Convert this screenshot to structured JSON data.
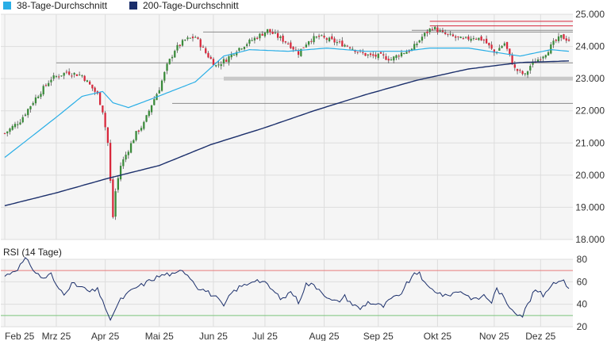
{
  "legend": {
    "items": [
      {
        "label": "38-Tage-Durchschnitt",
        "color": "#29aee6"
      },
      {
        "label": "200-Tage-Durchschnitt",
        "color": "#1b2f6b"
      }
    ]
  },
  "rsi_title": "RSI (14 Tage)",
  "colors": {
    "up": "#3a8a3a",
    "down": "#d8283c",
    "wick": "#555555",
    "sma38": "#29aee6",
    "sma200": "#1b2f6b",
    "rsi": "#1b2f6b",
    "grid": "#dddddd",
    "plot_bg": "#f5f5f5",
    "ref_line": "#d8283c",
    "support": "#c8c8c8",
    "rsi_upper": "#e67b7b",
    "rsi_lower": "#7bc47b"
  },
  "chart_data": [
    {
      "type": "candlestick",
      "ylim": [
        18000,
        25000
      ],
      "yticks": [
        18000,
        19000,
        20000,
        21000,
        22000,
        23000,
        24000,
        25000
      ],
      "ytick_labels": [
        "18.000",
        "19.000",
        "20.000",
        "21.000",
        "22.000",
        "23.000",
        "24.000",
        "25.000"
      ],
      "x_labels": [
        "Feb 25",
        "Mrz 25",
        "Apr 25",
        "Mai 25",
        "Jun 25",
        "Jul 25",
        "Aug 25",
        "Sep 25",
        "Okt 25",
        "Nov 25",
        "Dez 25"
      ],
      "x_range": [
        0,
        219
      ],
      "x_label_positions": [
        0,
        20,
        39,
        60,
        81,
        101,
        124,
        145,
        168,
        190,
        208
      ],
      "grid": true,
      "legend_position": "top-left",
      "sma38_anchors": [
        [
          0,
          20550
        ],
        [
          20,
          21800
        ],
        [
          30,
          22450
        ],
        [
          38,
          22600
        ],
        [
          42,
          22250
        ],
        [
          48,
          22100
        ],
        [
          58,
          22400
        ],
        [
          74,
          22900
        ],
        [
          85,
          23700
        ],
        [
          95,
          23900
        ],
        [
          110,
          23850
        ],
        [
          125,
          23950
        ],
        [
          140,
          23850
        ],
        [
          155,
          23850
        ],
        [
          165,
          23950
        ],
        [
          180,
          23950
        ],
        [
          200,
          23700
        ],
        [
          212,
          23900
        ],
        [
          219,
          23850
        ]
      ],
      "sma200_anchors": [
        [
          0,
          19050
        ],
        [
          20,
          19450
        ],
        [
          40,
          19900
        ],
        [
          60,
          20300
        ],
        [
          80,
          20950
        ],
        [
          100,
          21450
        ],
        [
          120,
          22000
        ],
        [
          140,
          22500
        ],
        [
          160,
          22950
        ],
        [
          180,
          23300
        ],
        [
          200,
          23500
        ],
        [
          219,
          23550
        ]
      ],
      "close_anchors": [
        [
          0,
          21300
        ],
        [
          6,
          21700
        ],
        [
          12,
          22400
        ],
        [
          18,
          23000
        ],
        [
          24,
          23200
        ],
        [
          30,
          23100
        ],
        [
          36,
          22500
        ],
        [
          38,
          22000
        ],
        [
          40,
          21000
        ],
        [
          41,
          19800
        ],
        [
          42,
          18700
        ],
        [
          43,
          19500
        ],
        [
          45,
          20300
        ],
        [
          48,
          20800
        ],
        [
          51,
          21300
        ],
        [
          54,
          21600
        ],
        [
          57,
          22200
        ],
        [
          60,
          22700
        ],
        [
          63,
          23400
        ],
        [
          66,
          23900
        ],
        [
          70,
          24200
        ],
        [
          74,
          24300
        ],
        [
          78,
          23800
        ],
        [
          82,
          23400
        ],
        [
          86,
          23600
        ],
        [
          90,
          23900
        ],
        [
          94,
          24100
        ],
        [
          98,
          24300
        ],
        [
          102,
          24500
        ],
        [
          106,
          24300
        ],
        [
          110,
          24100
        ],
        [
          114,
          23800
        ],
        [
          118,
          24200
        ],
        [
          122,
          24300
        ],
        [
          126,
          24200
        ],
        [
          130,
          24100
        ],
        [
          134,
          24000
        ],
        [
          138,
          23800
        ],
        [
          142,
          23700
        ],
        [
          146,
          23700
        ],
        [
          150,
          23600
        ],
        [
          154,
          23800
        ],
        [
          158,
          23900
        ],
        [
          162,
          24300
        ],
        [
          166,
          24600
        ],
        [
          170,
          24400
        ],
        [
          174,
          24300
        ],
        [
          178,
          24200
        ],
        [
          182,
          24300
        ],
        [
          186,
          24200
        ],
        [
          190,
          23800
        ],
        [
          194,
          24100
        ],
        [
          196,
          23700
        ],
        [
          198,
          23300
        ],
        [
          200,
          23200
        ],
        [
          202,
          23100
        ],
        [
          204,
          23400
        ],
        [
          207,
          23600
        ],
        [
          210,
          23800
        ],
        [
          213,
          24100
        ],
        [
          216,
          24300
        ],
        [
          219,
          24200
        ]
      ],
      "reference_lines": [
        {
          "value": 24780,
          "from_x": 165
        },
        {
          "value": 24640,
          "from_x": 165
        },
        {
          "value": 24500,
          "from_x": 158
        },
        {
          "value": 24450,
          "from_x": 77
        },
        {
          "value": 23490,
          "from_x": 20
        },
        {
          "value": 22230,
          "from_x": 65
        }
      ],
      "support_zone": {
        "from_x": 85,
        "to_x": 219,
        "y_low": 22940,
        "y_high": 23060
      }
    },
    {
      "type": "line",
      "title": "RSI (14 Tage)",
      "ylim": [
        20,
        80
      ],
      "yticks": [
        20,
        40,
        60,
        80
      ],
      "ytick_labels": [
        "20",
        "40",
        "60",
        "80"
      ],
      "upper_line": 70,
      "lower_line": 30,
      "x_range": [
        0,
        219
      ],
      "rsi_anchors": [
        [
          0,
          65
        ],
        [
          5,
          72
        ],
        [
          8,
          80
        ],
        [
          10,
          75
        ],
        [
          12,
          68
        ],
        [
          15,
          63
        ],
        [
          18,
          67
        ],
        [
          20,
          56
        ],
        [
          23,
          50
        ],
        [
          26,
          58
        ],
        [
          30,
          55
        ],
        [
          33,
          51
        ],
        [
          36,
          53
        ],
        [
          38,
          44
        ],
        [
          40,
          30
        ],
        [
          41,
          24
        ],
        [
          42,
          32
        ],
        [
          45,
          44
        ],
        [
          48,
          50
        ],
        [
          51,
          55
        ],
        [
          54,
          58
        ],
        [
          57,
          62
        ],
        [
          60,
          65
        ],
        [
          63,
          67
        ],
        [
          66,
          66
        ],
        [
          69,
          71
        ],
        [
          72,
          64
        ],
        [
          75,
          55
        ],
        [
          78,
          52
        ],
        [
          82,
          46
        ],
        [
          85,
          38
        ],
        [
          88,
          50
        ],
        [
          91,
          55
        ],
        [
          94,
          58
        ],
        [
          97,
          62
        ],
        [
          100,
          60
        ],
        [
          102,
          57
        ],
        [
          105,
          50
        ],
        [
          108,
          44
        ],
        [
          111,
          52
        ],
        [
          114,
          42
        ],
        [
          117,
          58
        ],
        [
          120,
          57
        ],
        [
          123,
          52
        ],
        [
          126,
          44
        ],
        [
          129,
          42
        ],
        [
          132,
          47
        ],
        [
          135,
          40
        ],
        [
          138,
          36
        ],
        [
          141,
          42
        ],
        [
          144,
          40
        ],
        [
          147,
          38
        ],
        [
          150,
          45
        ],
        [
          153,
          47
        ],
        [
          156,
          58
        ],
        [
          159,
          66
        ],
        [
          161,
          69
        ],
        [
          163,
          58
        ],
        [
          165,
          54
        ],
        [
          168,
          51
        ],
        [
          171,
          47
        ],
        [
          174,
          50
        ],
        [
          177,
          52
        ],
        [
          180,
          47
        ],
        [
          183,
          44
        ],
        [
          186,
          48
        ],
        [
          189,
          42
        ],
        [
          191,
          54
        ],
        [
          193,
          48
        ],
        [
          195,
          40
        ],
        [
          197,
          36
        ],
        [
          199,
          32
        ],
        [
          201,
          30
        ],
        [
          203,
          40
        ],
        [
          206,
          53
        ],
        [
          209,
          48
        ],
        [
          212,
          57
        ],
        [
          215,
          62
        ],
        [
          217,
          60
        ],
        [
          219,
          55
        ]
      ]
    }
  ]
}
